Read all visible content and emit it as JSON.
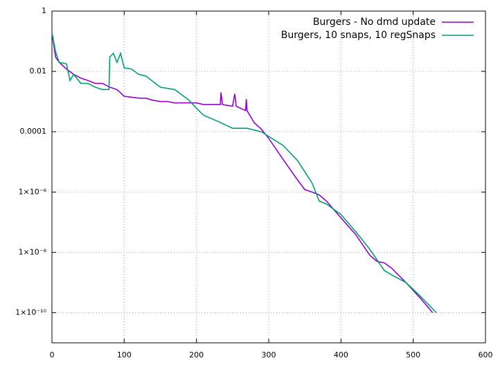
{
  "chart_data": {
    "type": "line",
    "xlim": [
      0,
      600
    ],
    "xticks": [
      0,
      100,
      200,
      300,
      400,
      500,
      600
    ],
    "ylim": [
      1e-11,
      1
    ],
    "log_y": true,
    "grid": true,
    "legend": "top-right",
    "yticks": [
      1,
      0.01,
      0.0001,
      {
        "value": 1e-06,
        "label": "1×10⁻⁶"
      },
      {
        "value": 1e-08,
        "label": "1×10⁻⁸"
      },
      {
        "value": 1e-10,
        "label": "1×10⁻¹⁰"
      }
    ],
    "series": [
      {
        "name": "Burgers - No dmd update",
        "color": "#9400d3",
        "x": [
          0,
          5,
          10,
          20,
          30,
          40,
          50,
          60,
          70,
          80,
          90,
          100,
          110,
          120,
          130,
          140,
          150,
          160,
          170,
          180,
          190,
          200,
          210,
          220,
          233,
          234,
          236,
          250,
          253,
          255,
          268,
          269,
          270,
          280,
          290,
          300,
          320,
          340,
          350,
          360,
          370,
          380,
          400,
          420,
          440,
          450,
          460,
          470,
          490,
          510,
          527
        ],
        "values": [
          0.2,
          0.03,
          0.02,
          0.012,
          0.008,
          0.006,
          0.005,
          0.004,
          0.004,
          0.003,
          0.0025,
          0.0015,
          0.0014,
          0.0013,
          0.0013,
          0.0011,
          0.001,
          0.001,
          0.0009,
          0.0009,
          0.0009,
          0.0009,
          0.0008,
          0.0008,
          0.0008,
          0.002,
          0.0008,
          0.0007,
          0.0018,
          0.0007,
          0.0005,
          0.0012,
          0.0005,
          0.0002,
          0.00012,
          6e-05,
          1.2e-05,
          2.5e-06,
          1.2e-06,
          1e-06,
          8e-07,
          5e-07,
          1.4e-07,
          4e-08,
          8e-09,
          5e-09,
          4.5e-09,
          3e-09,
          1e-09,
          3e-10,
          1e-10
        ]
      },
      {
        "name": "Burgers, 10 snaps, 10 regSnaps",
        "color": "#009e73",
        "x": [
          0,
          5,
          10,
          20,
          25,
          30,
          40,
          50,
          60,
          70,
          79,
          80,
          85,
          90,
          95,
          100,
          110,
          120,
          130,
          150,
          170,
          190,
          200,
          210,
          230,
          250,
          270,
          290,
          300,
          320,
          340,
          360,
          370,
          380,
          400,
          420,
          440,
          460,
          470,
          490,
          510,
          532
        ],
        "values": [
          0.2,
          0.045,
          0.02,
          0.018,
          0.005,
          0.008,
          0.004,
          0.004,
          0.003,
          0.0025,
          0.0025,
          0.03,
          0.04,
          0.02,
          0.04,
          0.013,
          0.012,
          0.008,
          0.007,
          0.003,
          0.0025,
          0.0011,
          0.0006,
          0.00035,
          0.00022,
          0.00013,
          0.00013,
          0.0001,
          7e-05,
          3.5e-05,
          1.1e-05,
          2e-06,
          5e-07,
          4e-07,
          1.8e-07,
          5e-08,
          1.26e-08,
          2.5e-09,
          1.8e-09,
          1e-09,
          3.5e-10,
          1e-10
        ]
      }
    ]
  }
}
